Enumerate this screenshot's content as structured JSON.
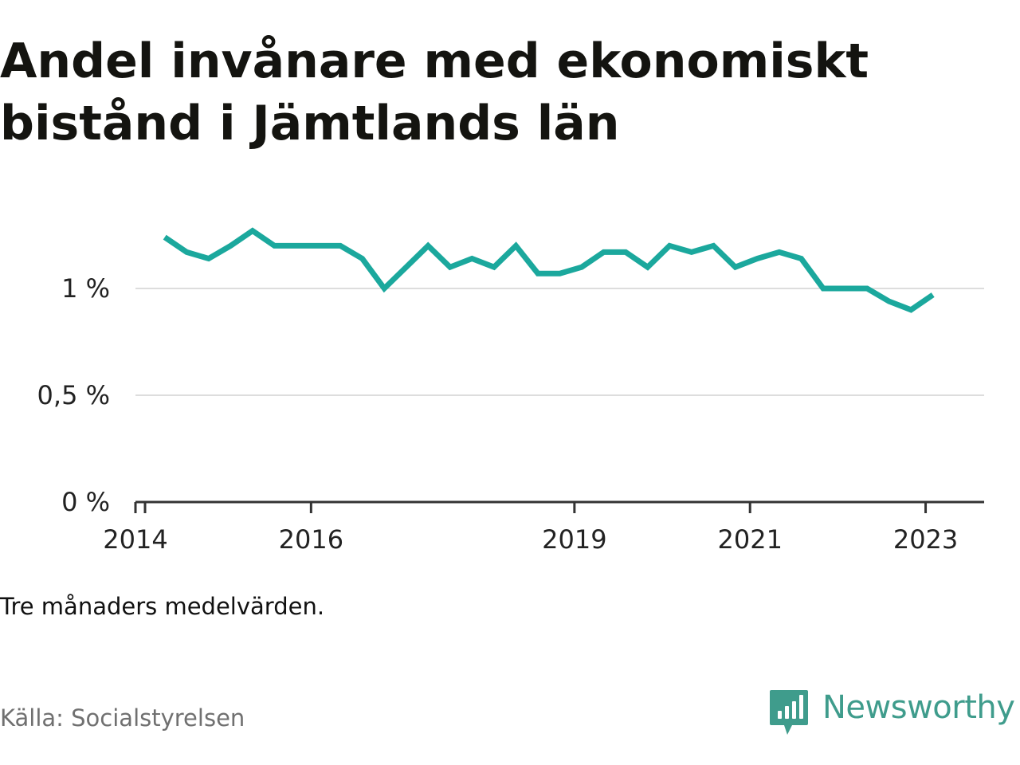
{
  "title": "Andel invånare med ekonomiskt bistånd i Jämtlands län",
  "note": "Tre månaders medelvärden.",
  "source": "Källa: Socialstyrelsen",
  "brand": {
    "name": "Newsworthy",
    "icon": "newsworthy-logo-icon",
    "color": "#3f9c8c"
  },
  "chart_data": {
    "type": "line",
    "title": "Andel invånare med ekonomiskt bistånd i Jämtlands län",
    "xlabel": "",
    "ylabel": "",
    "unit": "%",
    "xlim": [
      "2014-01",
      "2023-09"
    ],
    "ylim": [
      0,
      1.35
    ],
    "grid": true,
    "legend": "none",
    "line_color": "#1ba89d",
    "x_ticks": [
      "2014",
      "2016",
      "2019",
      "2021",
      "2023"
    ],
    "y_ticks": [
      "0 %",
      "0,5 %",
      "1 %"
    ],
    "y_tick_values": [
      0,
      0.5,
      1.0
    ],
    "series": [
      {
        "name": "",
        "x": [
          "2014-05",
          "2014-08",
          "2014-11",
          "2015-02",
          "2015-05",
          "2015-08",
          "2015-11",
          "2016-02",
          "2016-05",
          "2016-08",
          "2016-11",
          "2017-02",
          "2017-05",
          "2017-08",
          "2017-11",
          "2018-02",
          "2018-05",
          "2018-08",
          "2018-11",
          "2019-02",
          "2019-05",
          "2019-08",
          "2019-11",
          "2020-02",
          "2020-05",
          "2020-08",
          "2020-11",
          "2021-02",
          "2021-05",
          "2021-08",
          "2021-11",
          "2022-02",
          "2022-05",
          "2022-08",
          "2022-11",
          "2023-02"
        ],
        "values": [
          1.24,
          1.17,
          1.14,
          1.2,
          1.27,
          1.2,
          1.2,
          1.2,
          1.2,
          1.14,
          1.0,
          1.1,
          1.2,
          1.1,
          1.14,
          1.1,
          1.2,
          1.07,
          1.07,
          1.1,
          1.17,
          1.17,
          1.1,
          1.2,
          1.17,
          1.2,
          1.1,
          1.14,
          1.17,
          1.14,
          1.0,
          1.0,
          1.0,
          0.94,
          0.9,
          0.97
        ]
      }
    ]
  }
}
